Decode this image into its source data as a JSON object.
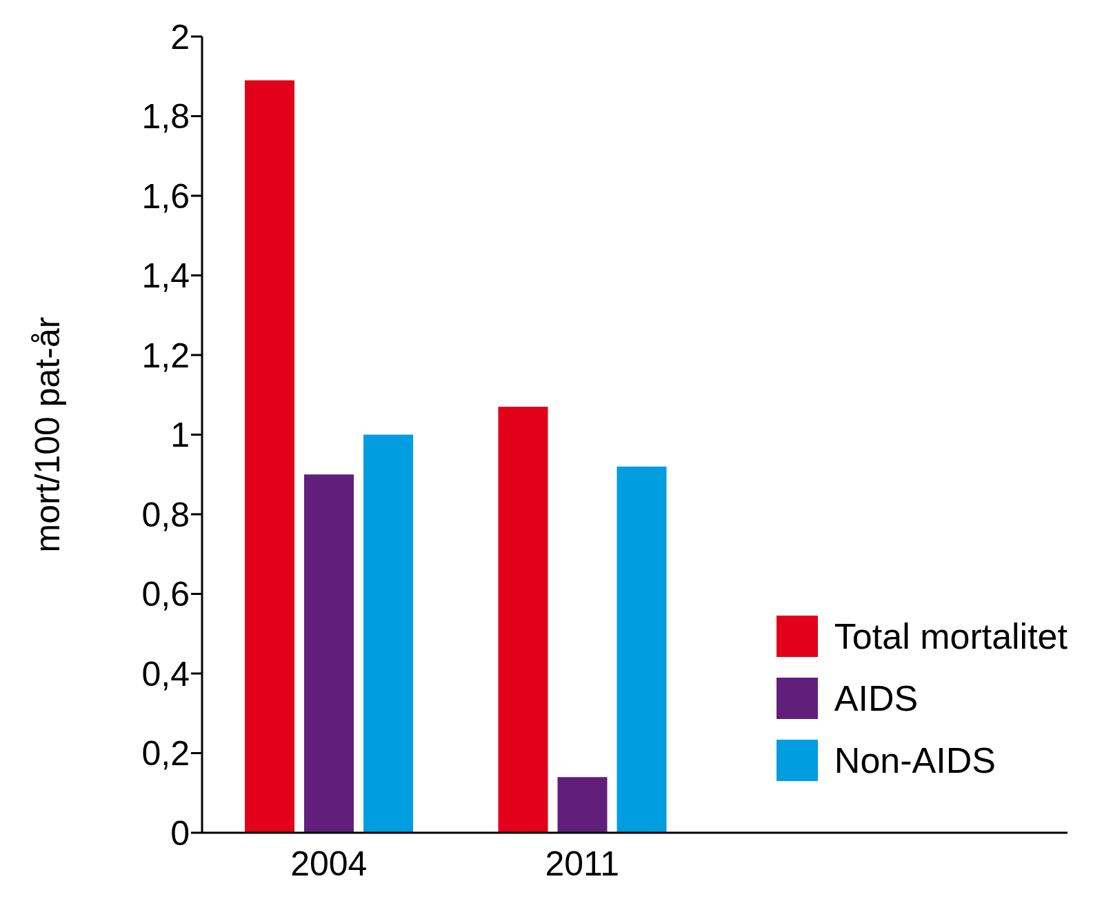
{
  "chart_data": {
    "type": "bar",
    "ylabel": "mort/100 pat-år",
    "categories": [
      "2004",
      "2011"
    ],
    "series": [
      {
        "name": "Total mortalitet",
        "color": "#e2001a",
        "values": [
          1.89,
          1.07
        ]
      },
      {
        "name": "AIDS",
        "color": "#611f7b",
        "values": [
          0.9,
          0.14
        ]
      },
      {
        "name": "Non-AIDS",
        "color": "#009ee0",
        "values": [
          1.0,
          0.92
        ]
      }
    ],
    "ylim": [
      0,
      2
    ],
    "yticks": [
      0,
      {
        "value": 0.2,
        "label": "0,2"
      },
      {
        "value": 0.4,
        "label": "0,4"
      },
      {
        "value": 0.6,
        "label": "0,6"
      },
      {
        "value": 0.8,
        "label": "0,8"
      },
      1,
      {
        "value": 1.2,
        "label": "1,2"
      },
      {
        "value": 1.4,
        "label": "1,4"
      },
      {
        "value": 1.6,
        "label": "1,6"
      },
      {
        "value": 1.8,
        "label": "1,8"
      },
      2
    ],
    "grid": false,
    "legend": "bottom right"
  }
}
